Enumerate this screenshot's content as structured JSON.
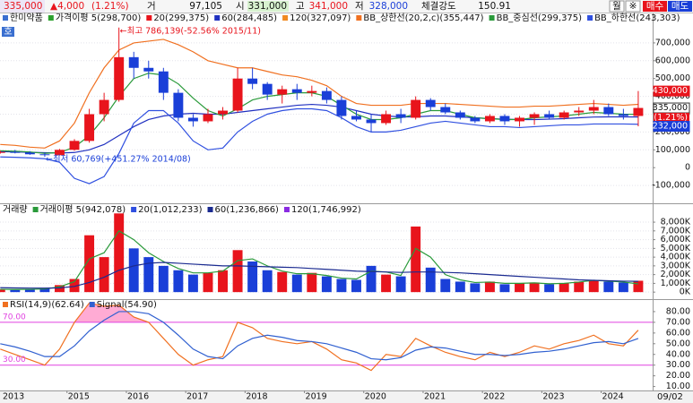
{
  "header": {
    "price": "335,000",
    "change": "▲4,000",
    "change_pct": "(1.21%)",
    "vol_label": "거",
    "volume": "97,105",
    "open_label": "시",
    "open": "331,000",
    "high_label": "고",
    "high": "341,000",
    "low_label": "저",
    "low": "328,000",
    "strength_label": "체결강도",
    "strength": "150.91",
    "buttons": [
      "월",
      "※",
      "매수",
      "매도"
    ]
  },
  "corner_button": "호",
  "last_date": "09/02",
  "chart_data": [
    {
      "type": "candlestick",
      "title": "한미약품",
      "categories": [
        "2013",
        null,
        null,
        null,
        null,
        "2015",
        null,
        null,
        null,
        "2016",
        null,
        null,
        null,
        "2017",
        null,
        null,
        null,
        "2018",
        null,
        null,
        null,
        "2019",
        null,
        null,
        null,
        "2020",
        null,
        null,
        null,
        "2021",
        null,
        null,
        null,
        "2022",
        null,
        null,
        null,
        "2023",
        null,
        null,
        null,
        "2024",
        null,
        null
      ],
      "open": [
        85000,
        88000,
        84000,
        75000,
        70000,
        100000,
        150000,
        300000,
        380000,
        620000,
        560000,
        540000,
        420000,
        280000,
        260000,
        300000,
        320000,
        500000,
        470000,
        410000,
        440000,
        420000,
        430000,
        380000,
        290000,
        270000,
        250000,
        300000,
        280000,
        380000,
        340000,
        310000,
        280000,
        260000,
        290000,
        260000,
        280000,
        300000,
        280000,
        310000,
        320000,
        340000,
        300000,
        290000
      ],
      "high": [
        95000,
        100000,
        92000,
        82000,
        105000,
        160000,
        330000,
        420000,
        786139,
        650000,
        600000,
        560000,
        440000,
        300000,
        330000,
        340000,
        560000,
        560000,
        480000,
        460000,
        470000,
        460000,
        450000,
        400000,
        320000,
        300000,
        320000,
        330000,
        400000,
        390000,
        360000,
        320000,
        290000,
        300000,
        300000,
        290000,
        310000,
        320000,
        320000,
        340000,
        380000,
        360000,
        330000,
        430000
      ],
      "low": [
        78000,
        80000,
        72000,
        60769,
        68000,
        95000,
        140000,
        260000,
        370000,
        500000,
        500000,
        380000,
        260000,
        230000,
        250000,
        270000,
        310000,
        440000,
        380000,
        360000,
        380000,
        400000,
        360000,
        270000,
        260000,
        200000,
        240000,
        250000,
        270000,
        320000,
        300000,
        270000,
        250000,
        250000,
        240000,
        230000,
        240000,
        270000,
        270000,
        290000,
        300000,
        290000,
        270000,
        232000
      ],
      "close": [
        88000,
        84000,
        75000,
        70000,
        100000,
        150000,
        300000,
        380000,
        620000,
        560000,
        540000,
        420000,
        280000,
        260000,
        300000,
        320000,
        500000,
        470000,
        410000,
        440000,
        420000,
        430000,
        380000,
        290000,
        270000,
        250000,
        300000,
        280000,
        380000,
        340000,
        310000,
        280000,
        260000,
        290000,
        260000,
        280000,
        300000,
        280000,
        310000,
        320000,
        340000,
        300000,
        290000,
        335000
      ],
      "up_color": "#e8141c",
      "down_color": "#1a3fd8",
      "legend_extra": [
        {
          "name": "가격이평 5(298,700)",
          "color": "#2ca02c"
        },
        {
          "name": "20(299,375)",
          "color": "#e8141c"
        },
        {
          "name": "120(327,097)",
          "color": "#f08a20"
        }
      ],
      "series": [
        {
          "name": "60(284,485)",
          "color": "#2030c0",
          "values": [
            90000,
            88000,
            86000,
            84000,
            82000,
            85000,
            100000,
            130000,
            180000,
            230000,
            270000,
            290000,
            300000,
            305000,
            300000,
            300000,
            310000,
            320000,
            330000,
            340000,
            350000,
            355000,
            350000,
            340000,
            320000,
            300000,
            290000,
            285000,
            285000,
            290000,
            290000,
            285000,
            280000,
            275000,
            272000,
            270000,
            270000,
            272000,
            275000,
            280000,
            284000,
            285000,
            285000,
            284485
          ]
        },
        {
          "name": "BB_상한선(20,2,c)(355,447)",
          "color": "#f07020",
          "values": [
            130000,
            125000,
            115000,
            110000,
            150000,
            250000,
            420000,
            560000,
            660000,
            700000,
            710000,
            720000,
            690000,
            650000,
            600000,
            580000,
            560000,
            560000,
            540000,
            520000,
            510000,
            490000,
            460000,
            400000,
            360000,
            350000,
            350000,
            350000,
            360000,
            360000,
            360000,
            355000,
            350000,
            345000,
            340000,
            340000,
            345000,
            345000,
            350000,
            355000,
            360000,
            355000,
            350000,
            355447
          ]
        },
        {
          "name": "BB_중심선(299,375)",
          "color": "#2a9a3a",
          "values": [
            95000,
            92000,
            88000,
            80000,
            85000,
            115000,
            180000,
            280000,
            400000,
            500000,
            530000,
            520000,
            470000,
            390000,
            320000,
            290000,
            330000,
            380000,
            400000,
            410000,
            420000,
            420000,
            400000,
            350000,
            300000,
            270000,
            270000,
            280000,
            300000,
            320000,
            320000,
            300000,
            280000,
            275000,
            270000,
            270000,
            280000,
            285000,
            290000,
            300000,
            310000,
            305000,
            300000,
            299375
          ]
        },
        {
          "name": "BB_하한선(243,303)",
          "color": "#3050e0",
          "values": [
            60000,
            58000,
            55000,
            50000,
            30000,
            -60000,
            -90000,
            -50000,
            80000,
            250000,
            320000,
            320000,
            250000,
            150000,
            100000,
            110000,
            200000,
            260000,
            300000,
            320000,
            330000,
            330000,
            320000,
            280000,
            230000,
            200000,
            200000,
            210000,
            230000,
            250000,
            260000,
            250000,
            240000,
            230000,
            230000,
            225000,
            230000,
            235000,
            240000,
            240000,
            245000,
            245000,
            245000,
            243303
          ]
        }
      ],
      "ylim": [
        -190000,
        790000
      ],
      "yticks": [
        {
          "value": -100000,
          "label": "-100,000"
        },
        0,
        {
          "value": 100000,
          "label": "100,000"
        },
        {
          "value": 200000,
          "label": "200,000"
        },
        {
          "value": 300000,
          "label": "300,000"
        },
        {
          "value": 400000,
          "label": "400,000"
        },
        {
          "value": 500000,
          "label": "500,000"
        },
        {
          "value": 600000,
          "label": "600,000"
        },
        {
          "value": 700000,
          "label": "700,000"
        }
      ],
      "price_labels": [
        {
          "value": 430000,
          "label": "430,000",
          "color": "#e8141c"
        },
        {
          "value": 335000,
          "label": "335,000",
          "color": "#ffffff"
        },
        {
          "value": 232000,
          "label": "232,000",
          "color": "#1a3fd8"
        }
      ],
      "annotations": {
        "max": "←최고 786,139(-52.56% 2015/11)",
        "min": "←최저 60,769(+451.27% 2014/08)"
      },
      "grid": true
    },
    {
      "type": "bar",
      "title": "거래량",
      "values": [
        300,
        250,
        350,
        400,
        800,
        1500,
        6500,
        4000,
        9000,
        5000,
        4000,
        3000,
        2500,
        2000,
        2200,
        2500,
        4800,
        3500,
        2500,
        2300,
        2000,
        2200,
        1800,
        1500,
        1400,
        3000,
        2000,
        1800,
        7500,
        2800,
        1500,
        1200,
        1000,
        1200,
        900,
        1000,
        1100,
        900,
        1000,
        1200,
        1400,
        1200,
        1100,
        1300
      ],
      "up_color": "#e8141c",
      "down_color": "#1a3fd8",
      "legend_extra": [
        {
          "name": "20(1,012,233)",
          "color": "#3050e0"
        },
        {
          "name": "120(1,746,992)",
          "color": "#8a2be2"
        }
      ],
      "series": [
        {
          "name": "거래이평 5(942,078)",
          "color": "#2a9a3a",
          "values": [
            320,
            300,
            320,
            360,
            600,
            1200,
            3800,
            4500,
            7000,
            6000,
            4500,
            3500,
            2700,
            2200,
            2200,
            2400,
            3600,
            3800,
            3000,
            2400,
            2100,
            2100,
            1900,
            1600,
            1500,
            2400,
            2300,
            1900,
            5000,
            4000,
            2000,
            1400,
            1100,
            1150,
            1000,
            1000,
            1050,
            950,
            1000,
            1150,
            1350,
            1250,
            1150,
            942
          ]
        },
        {
          "name": "60(1,236,866)",
          "color": "#1a2a90",
          "values": [
            500,
            480,
            460,
            450,
            480,
            650,
            1100,
            1700,
            2500,
            3000,
            3300,
            3400,
            3300,
            3200,
            3100,
            3000,
            3000,
            2950,
            2900,
            2850,
            2800,
            2700,
            2600,
            2500,
            2400,
            2350,
            2300,
            2250,
            2300,
            2300,
            2250,
            2200,
            2100,
            2000,
            1900,
            1800,
            1700,
            1600,
            1500,
            1400,
            1350,
            1300,
            1250,
            1237
          ]
        }
      ],
      "ylim": [
        -700,
        9850
      ],
      "yticks": [
        {
          "value": 0,
          "label": "0K"
        },
        {
          "value": 1000,
          "label": "1,000K"
        },
        {
          "value": 2000,
          "label": "2,000K"
        },
        {
          "value": 3000,
          "label": "3,000K"
        },
        {
          "value": 4000,
          "label": "4,000K"
        },
        {
          "value": 5000,
          "label": "5,000K"
        },
        {
          "value": 6000,
          "label": "6,000K"
        },
        {
          "value": 7000,
          "label": "7,000K"
        },
        {
          "value": 8000,
          "label": "8,000K"
        }
      ],
      "grid": true
    },
    {
      "type": "line",
      "series": [
        {
          "name": "RSI(14,9)(62.64)",
          "color": "#f07020",
          "values": [
            45,
            40,
            35,
            30,
            45,
            70,
            88,
            85,
            86,
            75,
            70,
            55,
            40,
            30,
            35,
            38,
            70,
            65,
            55,
            52,
            50,
            52,
            45,
            35,
            32,
            25,
            40,
            38,
            55,
            48,
            42,
            38,
            35,
            42,
            38,
            42,
            48,
            45,
            50,
            53,
            58,
            50,
            48,
            62.64
          ]
        },
        {
          "name": "Signal(54.90)",
          "color": "#3060d0",
          "values": [
            50,
            47,
            43,
            38,
            38,
            48,
            62,
            72,
            80,
            80,
            78,
            70,
            58,
            45,
            38,
            36,
            48,
            55,
            58,
            56,
            53,
            52,
            50,
            46,
            42,
            36,
            35,
            37,
            44,
            47,
            46,
            43,
            40,
            40,
            39,
            40,
            42,
            43,
            45,
            48,
            51,
            52,
            50,
            54.9
          ]
        }
      ],
      "ylim": [
        8,
        90
      ],
      "yticks": [
        {
          "value": 10,
          "label": "10.00"
        },
        {
          "value": 20,
          "label": "20.00"
        },
        {
          "value": 30,
          "label": "30.00"
        },
        {
          "value": 40,
          "label": "40.00"
        },
        {
          "value": 50,
          "label": "50.00"
        },
        {
          "value": 60,
          "label": "60.00"
        },
        {
          "value": 70,
          "label": "70.00"
        },
        {
          "value": 80,
          "label": "80.00"
        }
      ],
      "reference_lines": [
        {
          "value": 70,
          "label": "70.00",
          "color": "#e040e0"
        },
        {
          "value": 30,
          "label": "30.00",
          "color": "#e040e0"
        }
      ],
      "overbought_fill": "#ff9ccc",
      "grid": false
    }
  ]
}
